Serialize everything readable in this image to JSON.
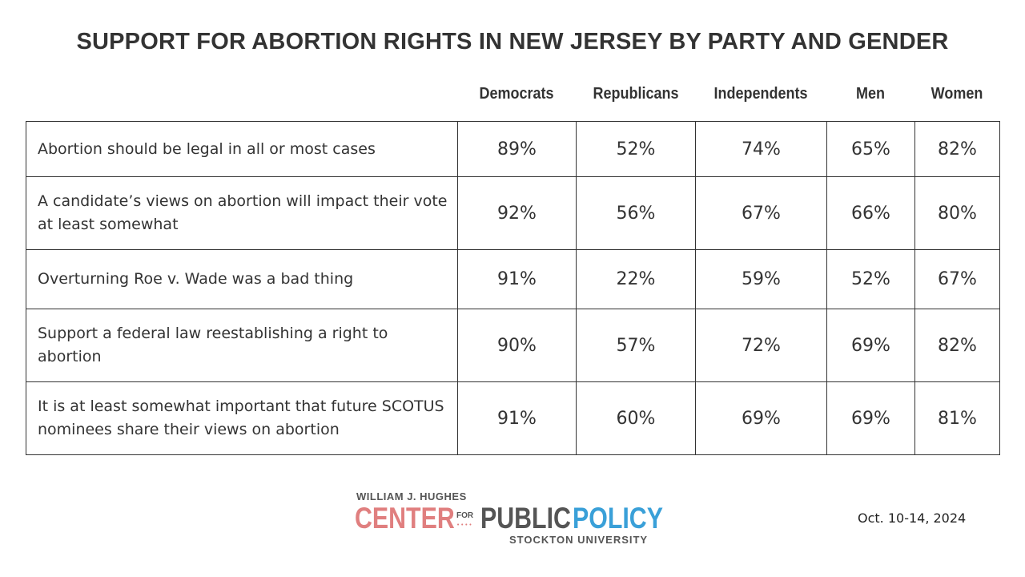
{
  "title": "SUPPORT FOR ABORTION RIGHTS IN NEW JERSEY BY PARTY AND GENDER",
  "chart_data": {
    "type": "table",
    "title": "SUPPORT FOR ABORTION RIGHTS IN NEW JERSEY BY PARTY AND GENDER",
    "columns": [
      "Democrats",
      "Republicans",
      "Independents",
      "Men",
      "Women"
    ],
    "rows": [
      {
        "label": "Abortion should be legal in all or most cases",
        "values": [
          "89%",
          "52%",
          "74%",
          "65%",
          "82%"
        ]
      },
      {
        "label": "A candidate’s views on abortion will impact their vote at least somewhat",
        "values": [
          "92%",
          "56%",
          "67%",
          "66%",
          "80%"
        ]
      },
      {
        "label": "Overturning Roe v. Wade was a bad thing",
        "values": [
          "91%",
          "22%",
          "59%",
          "52%",
          "67%"
        ]
      },
      {
        "label": "Support a federal law reestablishing a right to abortion",
        "values": [
          "90%",
          "57%",
          "72%",
          "69%",
          "82%"
        ]
      },
      {
        "label": "It is at least somewhat important that future SCOTUS nominees share their views on abortion",
        "values": [
          "91%",
          "60%",
          "69%",
          "69%",
          "81%"
        ]
      }
    ]
  },
  "logo": {
    "top": "WILLIAM J. HUGHES",
    "center": "CENTER",
    "for": "FOR",
    "public": "PUBLIC",
    "policy": "POLICY",
    "university": "STOCKTON UNIVERSITY"
  },
  "date": "Oct. 10-14, 2024"
}
